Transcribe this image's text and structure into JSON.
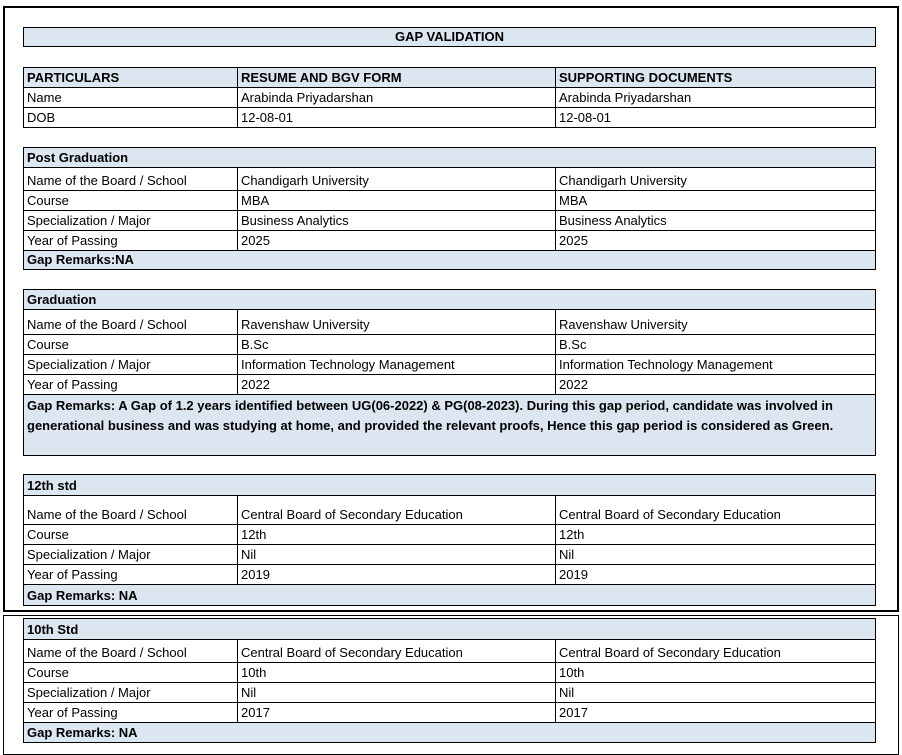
{
  "header": {
    "title": "GAP VALIDATION"
  },
  "summary": {
    "columns": [
      "PARTICULARS",
      "RESUME AND BGV FORM",
      "SUPPORTING DOCUMENTS"
    ],
    "rows": [
      [
        "Name",
        "Arabinda Priyadarshan",
        "Arabinda Priyadarshan"
      ],
      [
        "DOB",
        "12-08-01",
        "12-08-01"
      ]
    ]
  },
  "sections": [
    {
      "title": "Post Graduation",
      "rows": [
        [
          "Name of the Board / School",
          "Chandigarh University",
          "Chandigarh University"
        ],
        [
          "Course",
          "MBA",
          "MBA"
        ],
        [
          "Specialization / Major",
          "Business Analytics",
          "Business Analytics"
        ],
        [
          "Year of Passing",
          "2025",
          "2025"
        ]
      ],
      "remarks": "Gap Remarks:NA"
    },
    {
      "title": "Graduation",
      "rows": [
        [
          "Name of the Board / School",
          "Ravenshaw University",
          "Ravenshaw University"
        ],
        [
          "Course",
          "B.Sc",
          "B.Sc"
        ],
        [
          "Specialization / Major",
          "Information Technology Management",
          "Information Technology Management"
        ],
        [
          "Year of Passing",
          "2022",
          "2022"
        ]
      ],
      "remarks": "Gap Remarks: A Gap of 1.2 years identified between UG(06-2022) & PG(08-2023). During this gap period, candidate was involved in generational business and was studying at home, and provided the relevant proofs, Hence this gap period is considered as Green."
    },
    {
      "title": "12th std",
      "rows": [
        [
          "Name of the Board / School",
          "Central Board of Secondary Education",
          "Central Board of Secondary Education"
        ],
        [
          "Course",
          "12th",
          "12th"
        ],
        [
          "Specialization / Major",
          "Nil",
          "Nil"
        ],
        [
          "Year of Passing",
          "2019",
          "2019"
        ]
      ],
      "remarks": "Gap Remarks: NA"
    },
    {
      "title": "10th Std",
      "rows": [
        [
          "Name of the Board / School",
          "Central Board of Secondary Education",
          "Central Board of Secondary Education"
        ],
        [
          "Course",
          "10th",
          "10th"
        ],
        [
          "Specialization / Major",
          "Nil",
          "Nil"
        ],
        [
          "Year of Passing",
          "2017",
          "2017"
        ]
      ],
      "remarks": "Gap Remarks: NA"
    }
  ]
}
